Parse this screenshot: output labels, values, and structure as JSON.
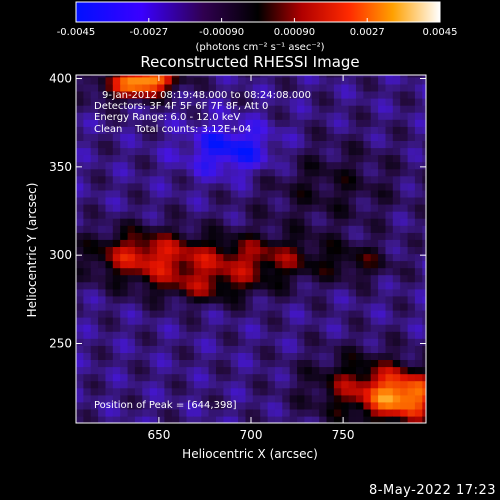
{
  "chart_data": {
    "type": "heatmap",
    "title": "Reconstructed RHESSI Image",
    "xlabel": "Heliocentric X (arcsec)",
    "ylabel": "Heliocentric Y (arcsec)",
    "xlim": [
      605,
      795
    ],
    "ylim": [
      205,
      402
    ],
    "xticks": [
      650,
      700,
      750
    ],
    "yticks": [
      250,
      300,
      350,
      400
    ],
    "colorbar": {
      "label": "(photons cm⁻² s⁻¹ asec⁻²)",
      "ticks": [
        "-0.0045",
        "-0.0027",
        "-0.00090",
        "0.00090",
        "0.0027",
        "0.0045"
      ],
      "range": [
        -0.0045,
        0.0045
      ],
      "colormap": [
        "#0000ff",
        "#6000ff",
        "#000000",
        "#c00000",
        "#ff4000",
        "#ffb000",
        "#ffffff"
      ]
    },
    "info_lines": [
      "9-Jan-2012 08:19:48.000 to 08:24:08.000",
      "Detectors: 3F 4F 5F 6F 7F 8F, Att 0",
      "Energy Range: 6.0 - 12.0 keV",
      "Clean    Total counts: 3.12E+04"
    ],
    "peak_label": "Position of Peak = [644,398]",
    "peak_position": [
      644,
      398
    ],
    "grid": false
  },
  "timestamp": "8-May-2022 17:23"
}
